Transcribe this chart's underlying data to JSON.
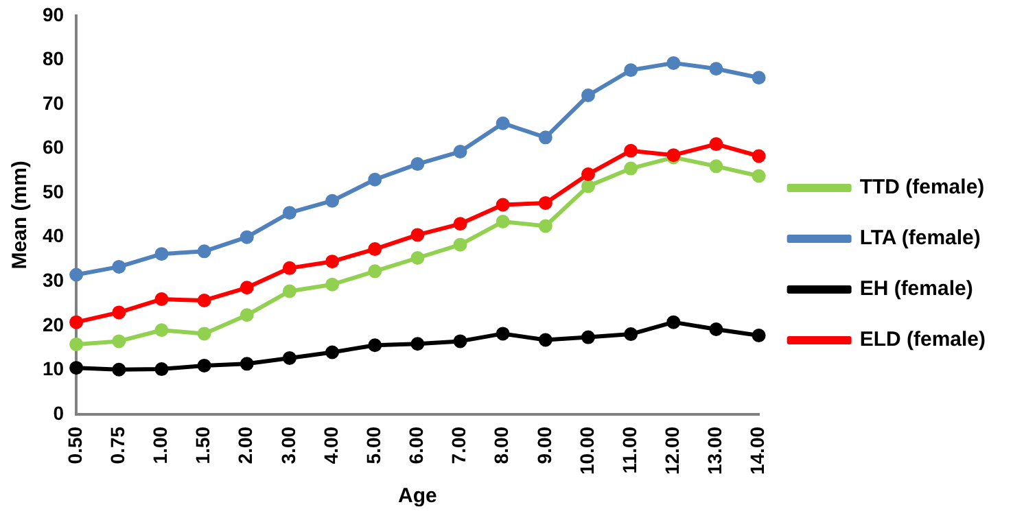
{
  "chart_data": {
    "type": "line",
    "xlabel": "Age",
    "ylabel": "Mean (mm)",
    "categories": [
      "0.50",
      "0.75",
      "1.00",
      "1.50",
      "2.00",
      "3.00",
      "4.00",
      "5.00",
      "6.00",
      "7.00",
      "8.00",
      "9.00",
      "10.00",
      "11.00",
      "12.00",
      "13.00",
      "14.00"
    ],
    "ylim": [
      0,
      90
    ],
    "yticks": [
      0,
      10,
      20,
      30,
      40,
      50,
      60,
      70,
      80,
      90
    ],
    "grid": false,
    "legend": "right",
    "marker": "circle",
    "line_style": "solid",
    "series": [
      {
        "name": "TTD (female)",
        "color": "#92d050",
        "values": [
          15.8,
          16.5,
          19,
          18.2,
          22.4,
          27.8,
          29.3,
          32.3,
          35.3,
          38.3,
          43.5,
          42.5,
          51.5,
          55.5,
          58,
          56,
          53.8
        ]
      },
      {
        "name": "LTA (female)",
        "color": "#4f81bd",
        "values": [
          31.5,
          33.3,
          36.2,
          36.8,
          40,
          45.5,
          48.2,
          53,
          56.5,
          59.3,
          65.7,
          62.5,
          72,
          77.7,
          79.3,
          78,
          76
        ]
      },
      {
        "name": "EH (female)",
        "color": "#000000",
        "values": [
          10.5,
          10.1,
          10.2,
          11,
          11.4,
          12.7,
          14,
          15.6,
          15.9,
          16.5,
          18.2,
          16.8,
          17.4,
          18.1,
          20.8,
          19.2,
          17.8
        ]
      },
      {
        "name": "ELD (female)",
        "color": "#ff0000",
        "values": [
          20.8,
          23,
          26,
          25.7,
          28.6,
          33,
          34.5,
          37.3,
          40.5,
          43,
          47.3,
          47.7,
          54.2,
          59.5,
          58.5,
          61,
          58.3
        ]
      }
    ]
  }
}
